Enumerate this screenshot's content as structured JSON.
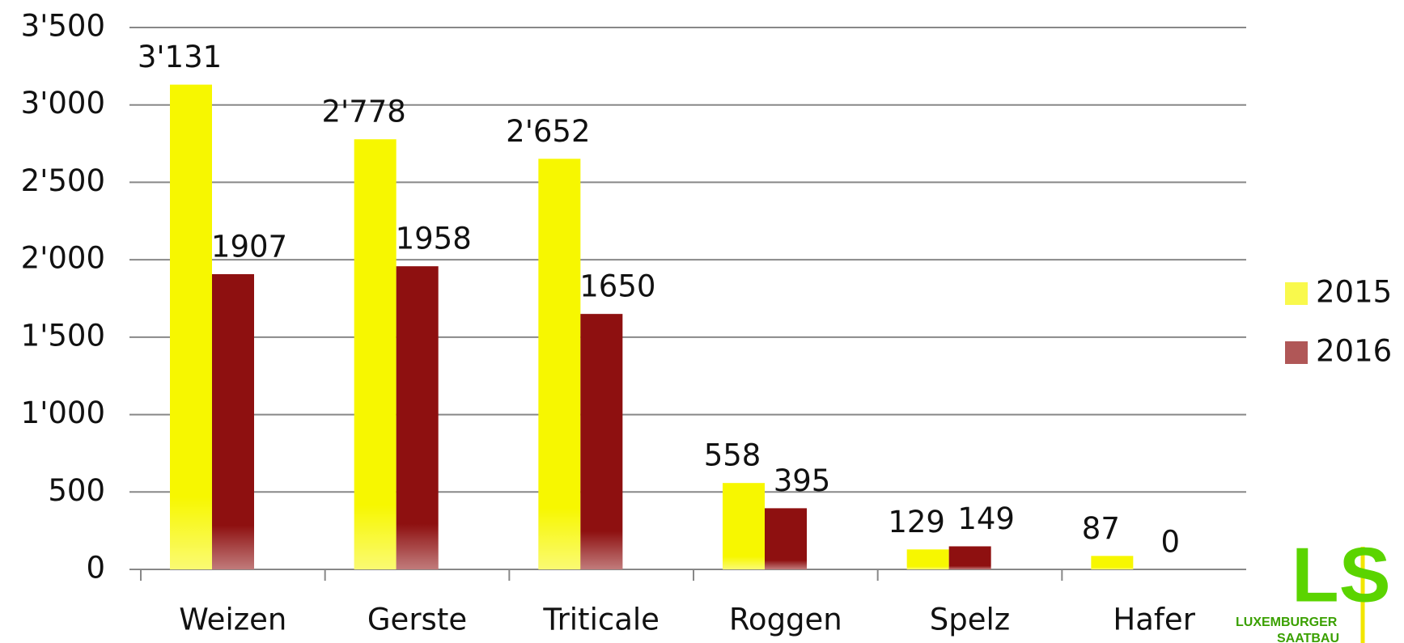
{
  "chart_data": {
    "type": "bar",
    "categories": [
      "Weizen",
      "Gerste",
      "Triticale",
      "Roggen",
      "Spelz",
      "Hafer"
    ],
    "series": [
      {
        "name": "2015",
        "color": "#f7f700",
        "values": [
          3131,
          2778,
          2652,
          558,
          129,
          87
        ],
        "value_labels": [
          "3'131",
          "2'778",
          "2'652",
          "558",
          "129",
          "87"
        ]
      },
      {
        "name": "2016",
        "color": "#8e1010",
        "values": [
          1907,
          1958,
          1650,
          395,
          149,
          0
        ]
      }
    ],
    "ylim": [
      0,
      3500
    ],
    "yticks": [
      0,
      500,
      {
        "value": 1000,
        "label": "1'000"
      },
      {
        "value": 1500,
        "label": "1'500"
      },
      {
        "value": 2000,
        "label": "2'000"
      },
      {
        "value": 2500,
        "label": "2'500"
      },
      {
        "value": 3000,
        "label": "3'000"
      },
      {
        "value": 3500,
        "label": "3'500"
      }
    ],
    "grid": true,
    "legend": "right"
  },
  "logo": {
    "mark": "LS",
    "line1": "LUXEMBURGER",
    "line2": "SAATBAU"
  }
}
